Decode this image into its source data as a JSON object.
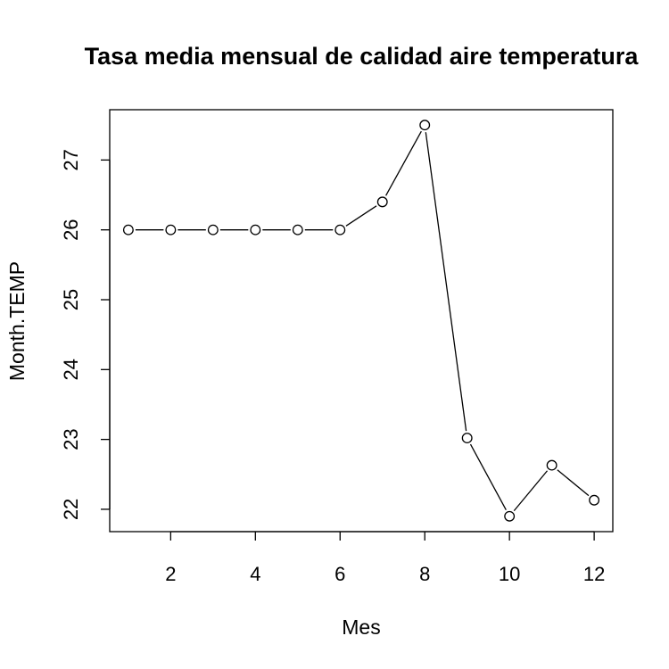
{
  "chart_data": {
    "type": "line",
    "title": "Tasa media mensual de calidad aire temperatura",
    "xlabel": "Mes",
    "ylabel": "Month.TEMP",
    "x": [
      1,
      2,
      3,
      4,
      5,
      6,
      7,
      8,
      9,
      10,
      11,
      12
    ],
    "series": [
      {
        "values": [
          26.0,
          26.0,
          26.0,
          26.0,
          26.0,
          26.0,
          26.4,
          27.5,
          23.02,
          21.9,
          22.63,
          22.13
        ]
      }
    ],
    "xlim": [
      0.56,
      12.44
    ],
    "ylim": [
      21.68,
      27.72
    ],
    "x_ticks": [
      2,
      4,
      6,
      8,
      10,
      12
    ],
    "y_ticks": [
      22,
      23,
      24,
      25,
      26,
      27
    ],
    "marker": "open-circle",
    "line_color": "#000000",
    "grid": false,
    "legend": "none"
  }
}
